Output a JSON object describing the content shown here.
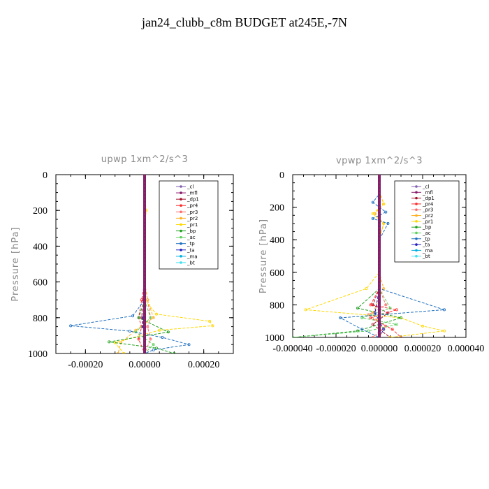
{
  "page_title": "jan24_clubb_c8m  BUDGET at245E,-7N",
  "chart_data": [
    {
      "type": "line",
      "title": "upwp   1xm^2/s^3",
      "xlabel": "",
      "ylabel": "Pressure  [hPa]",
      "xlim": [
        -0.0003,
        0.0003
      ],
      "ylim": [
        1000,
        0
      ],
      "xticks": [
        "-0.00020",
        "0.00000",
        "0.00020"
      ],
      "xtick_values": [
        -0.0002,
        0,
        0.0002
      ],
      "yticks": [
        "0",
        "200",
        "400",
        "600",
        "800",
        "1000"
      ],
      "ytick_values": [
        0,
        200,
        400,
        600,
        800,
        1000
      ],
      "legend_placement": "top-right",
      "legend": [
        "_cl",
        "_mfl",
        "_dp1",
        "_pr4",
        "_pr3",
        "_pr2",
        "_pr1",
        "_bp",
        "_ac",
        "_tp",
        "_ta",
        "_ma",
        "_bt"
      ],
      "series": [
        {
          "name": "_cl",
          "color": "#7f5fb0",
          "x": [
            0,
            0,
            0,
            0,
            0,
            0,
            0,
            0,
            0,
            0,
            0,
            0
          ],
          "y": [
            0,
            100,
            200,
            300,
            400,
            500,
            600,
            700,
            800,
            850,
            900,
            1000
          ]
        },
        {
          "name": "_mfl",
          "color": "#8b1a6b",
          "x": [
            0,
            0,
            0,
            0,
            0,
            0,
            0,
            0,
            0,
            0,
            0,
            0
          ],
          "y": [
            0,
            100,
            200,
            300,
            400,
            500,
            600,
            700,
            800,
            850,
            900,
            1000
          ]
        },
        {
          "name": "_dp1",
          "color": "#a0102a",
          "x": [
            0,
            0,
            0,
            0,
            0,
            0,
            0,
            -5e-06,
            -1e-05,
            -5e-06,
            0,
            0
          ],
          "y": [
            0,
            100,
            200,
            300,
            400,
            500,
            600,
            700,
            800,
            850,
            900,
            1000
          ]
        },
        {
          "name": "_pr4",
          "color": "#ff2a2a",
          "x": [
            0,
            0,
            0,
            0,
            0,
            0,
            0,
            -1e-05,
            -2e-05,
            -1e-05,
            -2e-05,
            0
          ],
          "y": [
            0,
            100,
            200,
            300,
            400,
            500,
            600,
            700,
            800,
            850,
            920,
            1000
          ]
        },
        {
          "name": "_pr3",
          "color": "#ff6a6a",
          "x": [
            0,
            0,
            0,
            0,
            0,
            0,
            0,
            1e-05,
            2e-05,
            1e-05,
            2e-05,
            0
          ],
          "y": [
            0,
            100,
            200,
            300,
            400,
            500,
            600,
            700,
            800,
            850,
            920,
            1000
          ]
        },
        {
          "name": "_pr2",
          "color": "#ffb020",
          "x": [
            0,
            0,
            5e-06,
            0,
            0,
            0,
            0,
            1e-05,
            3e-05,
            -3e-05,
            -8e-05,
            -9e-05
          ],
          "y": [
            0,
            100,
            200,
            300,
            400,
            500,
            600,
            700,
            800,
            870,
            940,
            1000
          ]
        },
        {
          "name": "_pr1",
          "color": "#ffd700",
          "x": [
            0,
            0,
            5e-06,
            0,
            0,
            0,
            0,
            0,
            4e-05,
            0.00022,
            0.00023,
            5e-05,
            -0.0001,
            -7e-05
          ],
          "y": [
            0,
            100,
            200,
            300,
            400,
            500,
            600,
            700,
            780,
            820,
            845,
            870,
            940,
            1000
          ]
        },
        {
          "name": "_bp",
          "color": "#1e9e1e",
          "x": [
            0,
            0,
            0,
            0,
            0,
            0,
            0,
            0,
            -2e-05,
            8e-05,
            -0.00012,
            4e-05,
            0.0001
          ],
          "y": [
            0,
            100,
            200,
            300,
            400,
            500,
            600,
            700,
            800,
            880,
            935,
            970,
            1000
          ]
        },
        {
          "name": "_ac",
          "color": "#5fd05f",
          "x": [
            0,
            0,
            0,
            0,
            0,
            0,
            0,
            0,
            2e-05,
            -3e-05,
            3e-05,
            0
          ],
          "y": [
            0,
            100,
            200,
            300,
            400,
            500,
            600,
            700,
            800,
            880,
            950,
            1000
          ]
        },
        {
          "name": "_tp",
          "color": "#1f6fbf",
          "x": [
            0,
            0,
            0,
            0,
            0,
            0,
            0,
            0,
            -4e-05,
            -0.00025,
            -5e-05,
            6e-05,
            0.00015,
            3e-05,
            0
          ],
          "y": [
            0,
            100,
            200,
            300,
            400,
            500,
            600,
            700,
            790,
            845,
            875,
            910,
            950,
            980,
            1000
          ]
        },
        {
          "name": "_ta",
          "color": "#2020c0",
          "x": [
            0,
            0,
            0,
            0,
            0,
            0,
            0,
            0,
            -5e-06,
            -5e-06,
            0,
            0
          ],
          "y": [
            0,
            100,
            200,
            300,
            400,
            500,
            600,
            700,
            800,
            850,
            900,
            1000
          ]
        },
        {
          "name": "_ma",
          "color": "#00b0e0",
          "x": [
            0,
            0,
            0,
            0,
            0,
            0,
            0,
            0,
            0,
            0,
            0,
            0
          ],
          "y": [
            0,
            100,
            200,
            300,
            400,
            500,
            600,
            700,
            800,
            850,
            900,
            1000
          ]
        },
        {
          "name": "_bt",
          "color": "#40e0f0",
          "x": [
            0,
            0,
            0,
            0,
            0,
            0,
            0,
            0,
            0,
            0,
            0,
            0
          ],
          "y": [
            0,
            100,
            200,
            300,
            400,
            500,
            600,
            700,
            800,
            850,
            900,
            1000
          ]
        }
      ]
    },
    {
      "type": "line",
      "title": "vpwp   1xm^2/s^3",
      "xlabel": "",
      "ylabel": "Pressure  [hPa]",
      "xlim": [
        -4e-05,
        4e-05
      ],
      "ylim": [
        1000,
        0
      ],
      "xticks": [
        "-0.000040",
        "-0.000020",
        "0.000000",
        "0.000020",
        "0.000040"
      ],
      "xtick_values": [
        -4e-05,
        -2e-05,
        0,
        2e-05,
        4e-05
      ],
      "yticks": [
        "0",
        "200",
        "400",
        "600",
        "800",
        "1000"
      ],
      "ytick_values": [
        0,
        200,
        400,
        600,
        800,
        1000
      ],
      "legend_placement": "top-right",
      "legend": [
        "_cl",
        "_mfl",
        "_dp1",
        "_pr4",
        "_pr3",
        "_pr2",
        "_pr1",
        "_bp",
        "_ac",
        "_tp",
        "_ta",
        "_ma",
        "_bt"
      ],
      "series": [
        {
          "name": "_cl",
          "color": "#7f5fb0",
          "x": [
            0,
            0,
            0,
            0,
            0,
            0,
            0,
            0,
            0,
            0,
            0,
            0
          ],
          "y": [
            0,
            100,
            200,
            300,
            400,
            500,
            600,
            700,
            800,
            850,
            900,
            1000
          ]
        },
        {
          "name": "_mfl",
          "color": "#8b1a6b",
          "x": [
            0,
            0,
            0,
            0,
            0,
            0,
            0,
            0,
            0,
            0,
            0,
            0
          ],
          "y": [
            0,
            100,
            200,
            300,
            400,
            500,
            600,
            700,
            800,
            850,
            900,
            1000
          ]
        },
        {
          "name": "_dp1",
          "color": "#a0102a",
          "x": [
            0,
            0,
            0,
            0,
            0,
            0,
            0,
            0,
            -3e-06,
            4e-06,
            -3e-06,
            5e-06
          ],
          "y": [
            0,
            100,
            200,
            300,
            400,
            500,
            600,
            700,
            800,
            850,
            920,
            1000
          ]
        },
        {
          "name": "_pr4",
          "color": "#ff2a2a",
          "x": [
            0,
            0,
            0,
            0,
            0,
            0,
            0,
            0,
            -4e-06,
            8e-06,
            -4e-06,
            6e-06,
            1e-05
          ],
          "y": [
            0,
            100,
            200,
            300,
            400,
            500,
            600,
            700,
            800,
            830,
            880,
            950,
            1000
          ]
        },
        {
          "name": "_pr3",
          "color": "#ff6a6a",
          "x": [
            0,
            0,
            0,
            0,
            0,
            0,
            0,
            0,
            3e-06,
            -5e-06,
            3e-06,
            -3e-06
          ],
          "y": [
            0,
            100,
            200,
            300,
            400,
            500,
            600,
            700,
            800,
            860,
            930,
            1000
          ]
        },
        {
          "name": "_pr2",
          "color": "#ffb020",
          "x": [
            0,
            0,
            2e-06,
            -2e-06,
            2e-06,
            0,
            0,
            0,
            2e-06,
            -3e-06,
            2e-06,
            0
          ],
          "y": [
            0,
            100,
            180,
            240,
            300,
            400,
            500,
            600,
            700,
            850,
            950,
            1000
          ]
        },
        {
          "name": "_pr1",
          "color": "#ffd700",
          "x": [
            0,
            0,
            2e-06,
            -3e-06,
            2e-06,
            0,
            0,
            0,
            -6e-06,
            -3.4e-05,
            1e-05,
            2e-05,
            3e-05,
            5e-06
          ],
          "y": [
            0,
            100,
            180,
            240,
            300,
            400,
            500,
            600,
            700,
            830,
            880,
            930,
            960,
            1000
          ]
        },
        {
          "name": "_bp",
          "color": "#1e9e1e",
          "x": [
            0,
            0,
            0,
            0,
            0,
            0,
            0,
            0,
            -1e-05,
            1e-05,
            -1e-05,
            -4e-05
          ],
          "y": [
            0,
            100,
            200,
            300,
            400,
            500,
            600,
            700,
            820,
            880,
            960,
            1000
          ]
        },
        {
          "name": "_ac",
          "color": "#5fd05f",
          "x": [
            0,
            0,
            0,
            0,
            0,
            0,
            0,
            0,
            5e-06,
            -8e-06,
            8e-06,
            -5e-06,
            -4e-05
          ],
          "y": [
            0,
            100,
            200,
            300,
            400,
            500,
            600,
            700,
            820,
            880,
            920,
            960,
            1000
          ]
        },
        {
          "name": "_tp",
          "color": "#1f6fbf",
          "x": [
            0,
            0,
            0,
            -3e-06,
            3e-06,
            -3e-06,
            4e-06,
            0,
            0,
            3e-05,
            -1.8e-05,
            -8e-06,
            0
          ],
          "y": [
            0,
            100,
            120,
            170,
            230,
            270,
            300,
            400,
            700,
            830,
            880,
            950,
            1000
          ]
        },
        {
          "name": "_ta",
          "color": "#2020c0",
          "x": [
            0,
            0,
            0,
            0,
            0,
            0,
            0,
            0,
            -2e-06,
            2e-06,
            0
          ],
          "y": [
            0,
            100,
            200,
            300,
            400,
            500,
            600,
            700,
            850,
            950,
            1000
          ]
        },
        {
          "name": "_ma",
          "color": "#00b0e0",
          "x": [
            0,
            0,
            0,
            0,
            0,
            0,
            0,
            0,
            0,
            0,
            0
          ],
          "y": [
            0,
            100,
            200,
            300,
            400,
            500,
            600,
            700,
            850,
            950,
            1000
          ]
        },
        {
          "name": "_bt",
          "color": "#40e0f0",
          "x": [
            0,
            0,
            0,
            0,
            0,
            0,
            0,
            0,
            0,
            0,
            0
          ],
          "y": [
            0,
            100,
            200,
            300,
            400,
            500,
            600,
            700,
            850,
            950,
            1000
          ]
        }
      ]
    }
  ]
}
